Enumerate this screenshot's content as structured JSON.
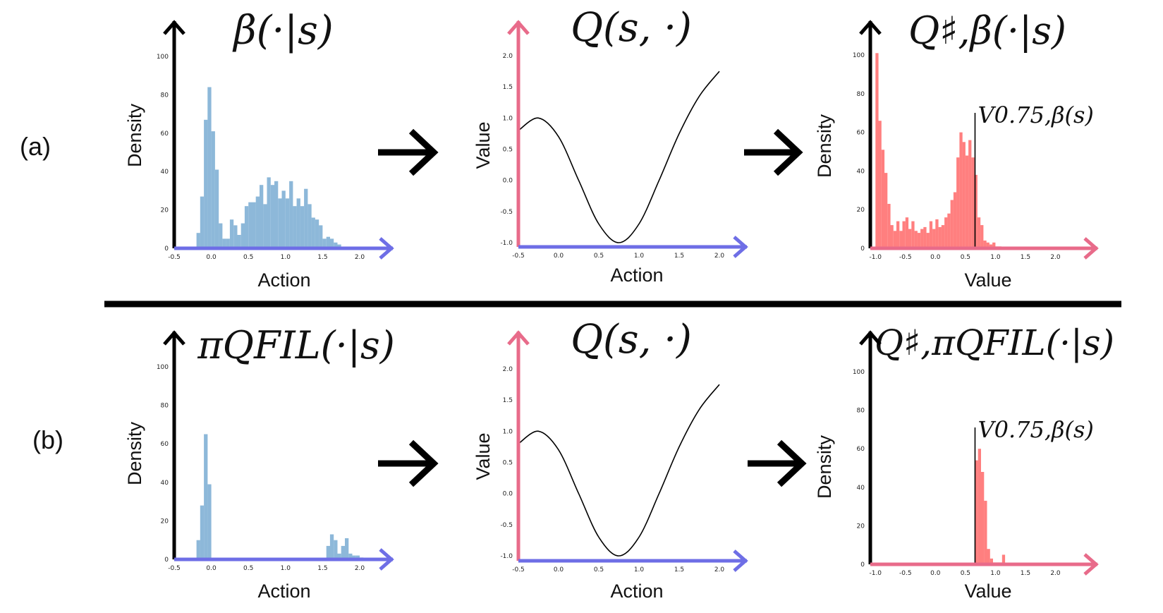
{
  "colors": {
    "blue_hist": "#8db8d9",
    "red_hist": "#ff7f7f",
    "blue_axis": "#6e6ee6",
    "pink_axis": "#e86b8a",
    "black": "#000000"
  },
  "rows": [
    {
      "label": "(a)",
      "panels": [
        {
          "title": "β(·|s)",
          "xlabel": "Action",
          "ylabel": "Density"
        },
        {
          "title": "Q(s, ·)",
          "xlabel": "Action",
          "ylabel": "Value"
        },
        {
          "title": "Q♯,β(·|s)",
          "xlabel": "Value",
          "ylabel": "Density",
          "annotation": "V0.75,β(s)"
        }
      ]
    },
    {
      "label": "(b)",
      "panels": [
        {
          "title": "πQFIL(·|s)",
          "xlabel": "Action",
          "ylabel": "Density"
        },
        {
          "title": "Q(s, ·)",
          "xlabel": "Action",
          "ylabel": "Value"
        },
        {
          "title": "Q♯,πQFIL(·|s)",
          "xlabel": "Value",
          "ylabel": "Density",
          "annotation": "V0.75,β(s)"
        }
      ]
    }
  ],
  "chart_data": [
    {
      "type": "bar",
      "row": "a",
      "col": 1,
      "x_ticks": [
        "-0.5",
        "0.0",
        "0.5",
        "1.0",
        "1.5",
        "2.0"
      ],
      "y_ticks": [
        "0",
        "20",
        "40",
        "60",
        "80",
        "100"
      ],
      "xlim": [
        -0.5,
        2.0
      ],
      "ylim": [
        0,
        100
      ],
      "bin_start": -0.2,
      "bin_width": 0.05,
      "values": [
        8,
        27,
        67,
        84,
        61,
        41,
        13,
        5,
        5,
        15,
        12,
        7,
        13,
        22,
        24,
        24,
        27,
        33,
        23,
        37,
        33,
        35,
        26,
        30,
        26,
        35,
        22,
        26,
        22,
        31,
        23,
        16,
        15,
        12,
        5,
        6,
        5,
        3,
        2
      ]
    },
    {
      "type": "line",
      "row": "a",
      "col": 2,
      "x_ticks": [
        "-0.5",
        "0.0",
        "0.5",
        "1.0",
        "1.5",
        "2.0"
      ],
      "y_ticks": [
        "-1.0",
        "-0.5",
        "0.0",
        "0.5",
        "1.0",
        "1.5",
        "2.0"
      ],
      "xlim": [
        -0.5,
        2.0
      ],
      "ylim": [
        -1.0,
        2.0
      ],
      "x": [
        -0.5,
        -0.25,
        0.0,
        0.25,
        0.5,
        0.75,
        1.0,
        1.25,
        1.5,
        1.75,
        2.0
      ],
      "y": [
        0.8,
        1.0,
        0.7,
        0.0,
        -0.7,
        -1.0,
        -0.7,
        0.0,
        0.75,
        1.35,
        1.75
      ]
    },
    {
      "type": "bar",
      "row": "a",
      "col": 3,
      "x_ticks": [
        "-1.0",
        "-0.5",
        "0.0",
        "0.5",
        "1.0",
        "1.5",
        "2.0"
      ],
      "y_ticks": [
        "0",
        "20",
        "40",
        "60",
        "80",
        "100"
      ],
      "xlim": [
        -1.05,
        2.3
      ],
      "ylim": [
        0,
        100
      ],
      "bin_start": -1.0,
      "bin_width": 0.05,
      "values": [
        101,
        66,
        51,
        39,
        23,
        12,
        9,
        14,
        9,
        14,
        16,
        10,
        14,
        9,
        8,
        10,
        11,
        8,
        14,
        10,
        15,
        11,
        12,
        16,
        18,
        25,
        29,
        47,
        60,
        55,
        48,
        56,
        47,
        38,
        16,
        12,
        4,
        3,
        2,
        3,
        1,
        1
      ],
      "quantile_x": 0.66,
      "quantile_label": "V0.75,β(s)"
    },
    {
      "type": "bar",
      "row": "b",
      "col": 1,
      "x_ticks": [
        "-0.5",
        "0.0",
        "0.5",
        "1.0",
        "1.5",
        "2.0"
      ],
      "y_ticks": [
        "0",
        "20",
        "40",
        "60",
        "80",
        "100"
      ],
      "xlim": [
        -0.5,
        2.0
      ],
      "ylim": [
        0,
        100
      ],
      "bin_start": -0.2,
      "bin_width": 0.05,
      "values": [
        10,
        28,
        65,
        39,
        0,
        0,
        0,
        0,
        0,
        0,
        0,
        0,
        0,
        0,
        0,
        0,
        0,
        0,
        0,
        0,
        0,
        0,
        0,
        0,
        0,
        0,
        0,
        0,
        0,
        0,
        0,
        0,
        0,
        0,
        0,
        7,
        13,
        10,
        3,
        7,
        11,
        3,
        2,
        2,
        1
      ]
    },
    {
      "type": "line",
      "row": "b",
      "col": 2,
      "x_ticks": [
        "-0.5",
        "0.0",
        "0.5",
        "1.0",
        "1.5",
        "2.0"
      ],
      "y_ticks": [
        "-1.0",
        "-0.5",
        "0.0",
        "0.5",
        "1.0",
        "1.5",
        "2.0"
      ],
      "xlim": [
        -0.5,
        2.0
      ],
      "ylim": [
        -1.0,
        2.0
      ],
      "x": [
        -0.5,
        -0.25,
        0.0,
        0.25,
        0.5,
        0.75,
        1.0,
        1.25,
        1.5,
        1.75,
        2.0
      ],
      "y": [
        0.8,
        1.0,
        0.7,
        0.0,
        -0.7,
        -1.0,
        -0.7,
        0.0,
        0.75,
        1.35,
        1.75
      ]
    },
    {
      "type": "bar",
      "row": "b",
      "col": 3,
      "x_ticks": [
        "-1.0",
        "-0.5",
        "0.0",
        "0.5",
        "1.0",
        "1.5",
        "2.0"
      ],
      "y_ticks": [
        "0",
        "20",
        "40",
        "60",
        "80",
        "100"
      ],
      "xlim": [
        -1.05,
        2.3
      ],
      "ylim": [
        0,
        100
      ],
      "bin_start": 0.66,
      "bin_width": 0.05,
      "values": [
        54,
        60,
        48,
        33,
        8,
        3,
        1,
        1,
        1,
        5
      ],
      "quantile_x": 0.66,
      "quantile_label": "V0.75,β(s)"
    }
  ]
}
